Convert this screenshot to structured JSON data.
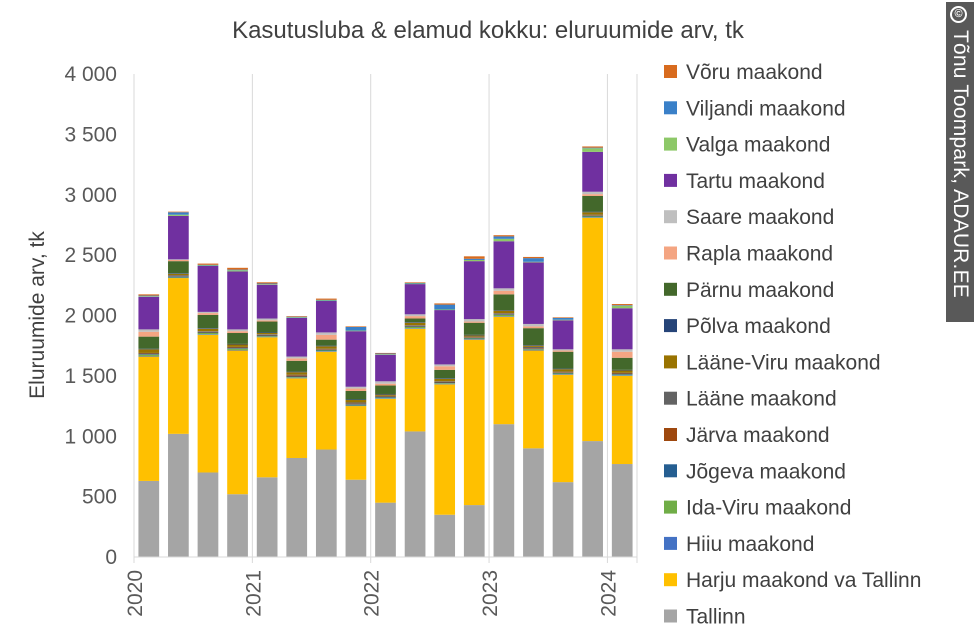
{
  "chart_data": {
    "type": "bar",
    "stacked": true,
    "title": "Kasutusluba & elamud kokku: eluruumide arv, tk",
    "ylabel": "Eluruumide arv, tk",
    "xlabel": "",
    "ylim": [
      0,
      4000
    ],
    "yticks": [
      0,
      500,
      1000,
      1500,
      2000,
      2500,
      3000,
      3500,
      4000
    ],
    "ytick_labels": [
      "0",
      "500",
      "1 000",
      "1 500",
      "2 000",
      "2 500",
      "3 000",
      "3 500",
      "4 000"
    ],
    "xtick_labels": [
      "2020",
      "2021",
      "2022",
      "2023",
      "2024"
    ],
    "grid": "vertical lines at year boundaries",
    "legend_placement": "right",
    "categories": [
      "2020 Q1",
      "2020 Q2",
      "2020 Q3",
      "2020 Q4",
      "2021 Q1",
      "2021 Q2",
      "2021 Q3",
      "2021 Q4",
      "2022 Q1",
      "2022 Q2",
      "2022 Q3",
      "2022 Q4",
      "2023 Q1",
      "2023 Q2",
      "2023 Q3",
      "2023 Q4",
      "2024 Q1"
    ],
    "series": [
      {
        "name": "Tallinn",
        "color": "#a5a5a5",
        "values": [
          630,
          1020,
          700,
          520,
          660,
          820,
          890,
          640,
          450,
          1040,
          350,
          430,
          1100,
          900,
          620,
          960,
          770
        ]
      },
      {
        "name": "Harju maakond va Tallinn",
        "color": "#ffc000",
        "values": [
          1030,
          1290,
          1140,
          1190,
          1160,
          660,
          810,
          610,
          860,
          850,
          1080,
          1370,
          890,
          810,
          890,
          1850,
          730
        ]
      },
      {
        "name": "Hiiu maakond",
        "color": "#4472c4",
        "values": [
          5,
          5,
          5,
          5,
          5,
          5,
          5,
          5,
          5,
          5,
          5,
          5,
          5,
          5,
          5,
          5,
          5
        ]
      },
      {
        "name": "Ida-Viru maakond",
        "color": "#70ad47",
        "values": [
          10,
          5,
          10,
          10,
          5,
          5,
          5,
          5,
          5,
          10,
          5,
          5,
          10,
          5,
          5,
          5,
          5
        ]
      },
      {
        "name": "Jõgeva maakond",
        "color": "#255e91",
        "values": [
          5,
          5,
          5,
          5,
          5,
          5,
          5,
          5,
          5,
          5,
          5,
          5,
          5,
          5,
          5,
          5,
          5
        ]
      },
      {
        "name": "Järva maakond",
        "color": "#9e480e",
        "values": [
          5,
          5,
          5,
          5,
          5,
          10,
          5,
          5,
          5,
          5,
          5,
          5,
          5,
          5,
          5,
          5,
          5
        ]
      },
      {
        "name": "Lääne maakond",
        "color": "#636363",
        "values": [
          5,
          5,
          5,
          5,
          5,
          5,
          5,
          10,
          5,
          5,
          5,
          5,
          5,
          10,
          5,
          5,
          5
        ]
      },
      {
        "name": "Lääne-Viru maakond",
        "color": "#997300",
        "values": [
          30,
          10,
          20,
          20,
          10,
          20,
          20,
          20,
          10,
          20,
          20,
          10,
          20,
          10,
          20,
          20,
          20
        ]
      },
      {
        "name": "Põlva maakond",
        "color": "#264478",
        "values": [
          5,
          5,
          5,
          5,
          5,
          5,
          5,
          5,
          5,
          5,
          5,
          5,
          5,
          5,
          5,
          5,
          5
        ]
      },
      {
        "name": "Pärnu maakond",
        "color": "#43682b",
        "values": [
          100,
          100,
          110,
          90,
          90,
          90,
          50,
          70,
          70,
          30,
          70,
          100,
          130,
          140,
          140,
          130,
          100
        ]
      },
      {
        "name": "Rapla maakond",
        "color": "#f4a582",
        "values": [
          40,
          10,
          15,
          15,
          10,
          20,
          40,
          20,
          15,
          20,
          30,
          10,
          30,
          15,
          10,
          15,
          50
        ]
      },
      {
        "name": "Saare maakond",
        "color": "#bfbfbf",
        "values": [
          20,
          5,
          10,
          15,
          15,
          15,
          20,
          15,
          20,
          15,
          15,
          20,
          20,
          20,
          10,
          20,
          20
        ]
      },
      {
        "name": "Tartu maakond",
        "color": "#7030a0",
        "values": [
          270,
          360,
          380,
          480,
          280,
          320,
          260,
          460,
          220,
          250,
          450,
          480,
          390,
          510,
          240,
          330,
          340
        ]
      },
      {
        "name": "Valga maakond",
        "color": "#8dc868",
        "values": [
          5,
          10,
          5,
          10,
          5,
          5,
          5,
          5,
          5,
          5,
          5,
          10,
          20,
          5,
          5,
          30,
          20
        ]
      },
      {
        "name": "Viljandi maakond",
        "color": "#3a80c8",
        "values": [
          5,
          20,
          5,
          5,
          5,
          5,
          5,
          30,
          5,
          5,
          40,
          10,
          20,
          30,
          15,
          5,
          5
        ]
      },
      {
        "name": "Võru maakond",
        "color": "#d86b1e",
        "values": [
          10,
          5,
          10,
          15,
          10,
          5,
          10,
          5,
          5,
          5,
          10,
          20,
          10,
          10,
          5,
          10,
          10
        ]
      }
    ]
  },
  "credit": {
    "text": "Tõnu Toompark, ADAUR.EE",
    "symbol": "©"
  }
}
